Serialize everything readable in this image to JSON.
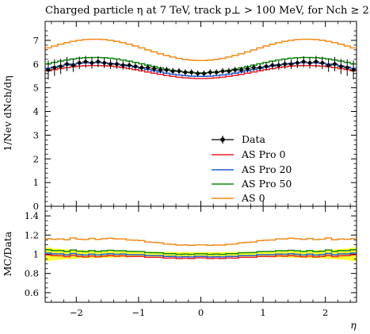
{
  "chart_data": {
    "type": "line",
    "title": "Charged particle η at 7 TeV, track p⊥ > 100 MeV, for Nch ≥ 2",
    "xlabel": "η",
    "ylabel": "1/Nev dNch/dη",
    "ratio_ylabel": "MC/Data",
    "xlim": [
      -2.5,
      2.5
    ],
    "ylim": [
      0,
      7.8
    ],
    "ratio_ylim": [
      0.5,
      1.5
    ],
    "x_ticks": [
      "-2",
      "-1",
      "0",
      "1",
      "2"
    ],
    "y_ticks": [
      "0",
      "1",
      "2",
      "3",
      "4",
      "5",
      "6",
      "7"
    ],
    "ratio_y_ticks": [
      "0.6",
      "0.8",
      "1",
      "1.2",
      "1.4"
    ],
    "grid": false,
    "legend_position": "bottom-right",
    "x_edges": [
      -2.5,
      -2.4,
      -2.3,
      -2.2,
      -2.1,
      -2.0,
      -1.9,
      -1.8,
      -1.7,
      -1.6,
      -1.5,
      -1.4,
      -1.3,
      -1.2,
      -1.1,
      -1.0,
      -0.9,
      -0.8,
      -0.7,
      -0.6,
      -0.5,
      -0.4,
      -0.3,
      -0.2,
      -0.1,
      0.0,
      0.1,
      0.2,
      0.3,
      0.4,
      0.5,
      0.6,
      0.7,
      0.8,
      0.9,
      1.0,
      1.1,
      1.2,
      1.3,
      1.4,
      1.5,
      1.6,
      1.7,
      1.8,
      1.9,
      2.0,
      2.1,
      2.2,
      2.3,
      2.4,
      2.5
    ],
    "data": {
      "name": "Data",
      "color": "#000000",
      "x": [
        -2.45,
        -2.35,
        -2.25,
        -2.15,
        -2.05,
        -1.95,
        -1.85,
        -1.75,
        -1.65,
        -1.55,
        -1.45,
        -1.35,
        -1.25,
        -1.15,
        -1.05,
        -0.95,
        -0.85,
        -0.75,
        -0.65,
        -0.55,
        -0.45,
        -0.35,
        -0.25,
        -0.15,
        -0.05,
        0.05,
        0.15,
        0.25,
        0.35,
        0.45,
        0.55,
        0.65,
        0.75,
        0.85,
        0.95,
        1.05,
        1.15,
        1.25,
        1.35,
        1.45,
        1.55,
        1.65,
        1.75,
        1.85,
        1.95,
        2.05,
        2.15,
        2.25,
        2.35,
        2.45
      ],
      "y": [
        5.75,
        5.85,
        5.9,
        6.0,
        5.95,
        6.05,
        6.1,
        6.05,
        6.1,
        6.05,
        6.0,
        6.0,
        5.95,
        5.95,
        5.9,
        5.85,
        5.85,
        5.8,
        5.75,
        5.75,
        5.7,
        5.7,
        5.65,
        5.65,
        5.6,
        5.6,
        5.65,
        5.65,
        5.7,
        5.7,
        5.75,
        5.75,
        5.8,
        5.85,
        5.85,
        5.9,
        5.95,
        5.95,
        6.0,
        6.0,
        6.05,
        6.1,
        6.05,
        6.1,
        6.05,
        5.95,
        6.0,
        5.9,
        5.85,
        5.75
      ],
      "yerr": [
        0.4,
        0.35,
        0.32,
        0.3,
        0.28,
        0.26,
        0.25,
        0.24,
        0.23,
        0.22,
        0.21,
        0.2,
        0.19,
        0.18,
        0.17,
        0.16,
        0.15,
        0.15,
        0.14,
        0.14,
        0.14,
        0.13,
        0.13,
        0.13,
        0.13,
        0.13,
        0.13,
        0.13,
        0.13,
        0.14,
        0.14,
        0.14,
        0.15,
        0.15,
        0.16,
        0.17,
        0.18,
        0.19,
        0.2,
        0.21,
        0.22,
        0.23,
        0.24,
        0.25,
        0.26,
        0.28,
        0.3,
        0.32,
        0.35,
        0.4
      ]
    },
    "series": [
      {
        "name": "AS Pro 0",
        "color": "#e8212b",
        "a": 5.39,
        "b": 0.55
      },
      {
        "name": "AS Pro 20",
        "color": "#1f5bd6",
        "a": 5.48,
        "b": 0.58
      },
      {
        "name": "AS Pro 50",
        "color": "#138a13",
        "a": 5.63,
        "b": 0.65
      },
      {
        "name": "AS 0",
        "color": "#f08c1a",
        "a": 6.15,
        "b": 0.9
      }
    ]
  }
}
